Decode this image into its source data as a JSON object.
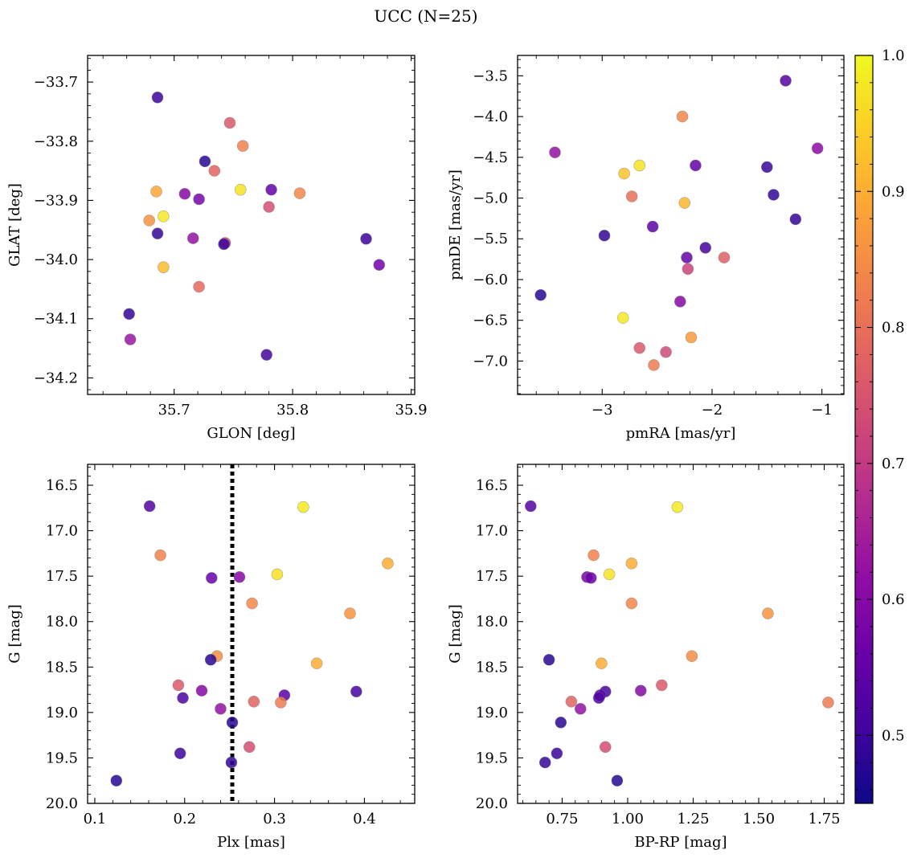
{
  "figure": {
    "title": "UCC (N=25)"
  },
  "colorbar": {
    "min": 0.45,
    "max": 1.0,
    "ticks": [
      0.5,
      0.6,
      0.7,
      0.8,
      0.9,
      1.0
    ],
    "tick_labels": [
      "0.5",
      "0.6",
      "0.7",
      "0.8",
      "0.9",
      "1.0"
    ],
    "colormap": "plasma"
  },
  "chart_data": [
    {
      "type": "scatter",
      "id": "glon-glat",
      "title": "",
      "xlabel": "GLON [deg]",
      "ylabel": "GLAT [deg]",
      "xlim": [
        35.627,
        35.903
      ],
      "ylim": [
        -34.228,
        -33.655
      ],
      "invert_y": false,
      "xticks": [
        35.7,
        35.8,
        35.9
      ],
      "xtick_labels": [
        "35.7",
        "35.8",
        "35.9"
      ],
      "yticks": [
        -33.7,
        -33.8,
        -33.9,
        -34.0,
        -34.1,
        -34.2
      ],
      "ytick_labels": [
        "−33.7",
        "−33.8",
        "−33.9",
        "−34.0",
        "−34.1",
        "−34.2"
      ],
      "points": [
        {
          "x": 35.686,
          "y": -33.726,
          "c": 0.5
        },
        {
          "x": 35.747,
          "y": -33.769,
          "c": 0.76
        },
        {
          "x": 35.758,
          "y": -33.808,
          "c": 0.83
        },
        {
          "x": 35.726,
          "y": -33.834,
          "c": 0.48
        },
        {
          "x": 35.734,
          "y": -33.85,
          "c": 0.78
        },
        {
          "x": 35.685,
          "y": -33.885,
          "c": 0.89
        },
        {
          "x": 35.756,
          "y": -33.882,
          "c": 0.97
        },
        {
          "x": 35.782,
          "y": -33.882,
          "c": 0.55
        },
        {
          "x": 35.806,
          "y": -33.888,
          "c": 0.84
        },
        {
          "x": 35.709,
          "y": -33.889,
          "c": 0.6
        },
        {
          "x": 35.721,
          "y": -33.898,
          "c": 0.58
        },
        {
          "x": 35.78,
          "y": -33.911,
          "c": 0.74
        },
        {
          "x": 35.691,
          "y": -33.927,
          "c": 0.98
        },
        {
          "x": 35.679,
          "y": -33.934,
          "c": 0.86
        },
        {
          "x": 35.686,
          "y": -33.956,
          "c": 0.49
        },
        {
          "x": 35.716,
          "y": -33.964,
          "c": 0.62
        },
        {
          "x": 35.743,
          "y": -33.972,
          "c": 0.72
        },
        {
          "x": 35.742,
          "y": -33.974,
          "c": 0.5
        },
        {
          "x": 35.862,
          "y": -33.965,
          "c": 0.5
        },
        {
          "x": 35.873,
          "y": -34.009,
          "c": 0.57
        },
        {
          "x": 35.691,
          "y": -34.013,
          "c": 0.92
        },
        {
          "x": 35.721,
          "y": -34.046,
          "c": 0.79
        },
        {
          "x": 35.662,
          "y": -34.092,
          "c": 0.49
        },
        {
          "x": 35.663,
          "y": -34.135,
          "c": 0.63
        },
        {
          "x": 35.778,
          "y": -34.161,
          "c": 0.51
        }
      ]
    },
    {
      "type": "scatter",
      "id": "pmra-pmde",
      "title": "",
      "xlabel": "pmRA [mas/yr]",
      "ylabel": "pmDE [mas/yr]",
      "xlim": [
        -3.77,
        -0.8
      ],
      "ylim": [
        -7.41,
        -3.25
      ],
      "invert_y": false,
      "xticks": [
        -3,
        -2,
        -1
      ],
      "xtick_labels": [
        "−3",
        "−2",
        "−1"
      ],
      "yticks": [
        -3.5,
        -4.0,
        -4.5,
        -5.0,
        -5.5,
        -6.0,
        -6.5,
        -7.0
      ],
      "ytick_labels": [
        "−3.5",
        "−4.0",
        "−4.5",
        "−5.0",
        "−5.5",
        "−6.0",
        "−6.5",
        "−7.0"
      ],
      "points": [
        {
          "x": -1.33,
          "y": -3.56,
          "c": 0.53
        },
        {
          "x": -2.27,
          "y": -4.0,
          "c": 0.84
        },
        {
          "x": -3.43,
          "y": -4.44,
          "c": 0.62
        },
        {
          "x": -1.04,
          "y": -4.39,
          "c": 0.61
        },
        {
          "x": -2.66,
          "y": -4.6,
          "c": 0.97
        },
        {
          "x": -2.8,
          "y": -4.7,
          "c": 0.93
        },
        {
          "x": -2.15,
          "y": -4.6,
          "c": 0.55
        },
        {
          "x": -1.5,
          "y": -4.62,
          "c": 0.5
        },
        {
          "x": -1.44,
          "y": -4.96,
          "c": 0.49
        },
        {
          "x": -2.73,
          "y": -4.98,
          "c": 0.8
        },
        {
          "x": -2.25,
          "y": -5.06,
          "c": 0.91
        },
        {
          "x": -1.24,
          "y": -5.26,
          "c": 0.49
        },
        {
          "x": -2.54,
          "y": -5.35,
          "c": 0.54
        },
        {
          "x": -2.98,
          "y": -5.46,
          "c": 0.49
        },
        {
          "x": -2.06,
          "y": -5.61,
          "c": 0.51
        },
        {
          "x": -2.23,
          "y": -5.73,
          "c": 0.55
        },
        {
          "x": -1.89,
          "y": -5.73,
          "c": 0.77
        },
        {
          "x": -2.22,
          "y": -5.87,
          "c": 0.72
        },
        {
          "x": -3.56,
          "y": -6.19,
          "c": 0.48
        },
        {
          "x": -2.29,
          "y": -6.27,
          "c": 0.6
        },
        {
          "x": -2.81,
          "y": -6.47,
          "c": 0.98
        },
        {
          "x": -2.19,
          "y": -6.71,
          "c": 0.87
        },
        {
          "x": -2.66,
          "y": -6.84,
          "c": 0.76
        },
        {
          "x": -2.42,
          "y": -6.89,
          "c": 0.73
        },
        {
          "x": -2.53,
          "y": -7.05,
          "c": 0.82
        }
      ]
    },
    {
      "type": "scatter",
      "id": "plx-g",
      "title": "",
      "xlabel": "Plx [mas]",
      "ylabel": "G [mag]",
      "xlim": [
        0.092,
        0.456
      ],
      "ylim": [
        20.0,
        16.27
      ],
      "invert_y": true,
      "xticks": [
        0.1,
        0.2,
        0.3,
        0.4
      ],
      "xtick_labels": [
        "0.1",
        "0.2",
        "0.3",
        "0.4"
      ],
      "yticks": [
        16.5,
        17.0,
        17.5,
        18.0,
        18.5,
        19.0,
        19.5,
        20.0
      ],
      "ytick_labels": [
        "16.5",
        "17.0",
        "17.5",
        "18.0",
        "18.5",
        "19.0",
        "19.5",
        "20.0"
      ],
      "vline": {
        "x": 0.253,
        "style": "dotted"
      },
      "points": [
        {
          "x": 0.161,
          "y": 16.73,
          "c": 0.53
        },
        {
          "x": 0.332,
          "y": 16.74,
          "c": 0.98
        },
        {
          "x": 0.173,
          "y": 17.27,
          "c": 0.83
        },
        {
          "x": 0.426,
          "y": 17.36,
          "c": 0.9
        },
        {
          "x": 0.303,
          "y": 17.48,
          "c": 0.97
        },
        {
          "x": 0.23,
          "y": 17.52,
          "c": 0.56
        },
        {
          "x": 0.261,
          "y": 17.51,
          "c": 0.6
        },
        {
          "x": 0.275,
          "y": 17.8,
          "c": 0.84
        },
        {
          "x": 0.384,
          "y": 17.91,
          "c": 0.86
        },
        {
          "x": 0.236,
          "y": 18.38,
          "c": 0.85
        },
        {
          "x": 0.229,
          "y": 18.42,
          "c": 0.48
        },
        {
          "x": 0.347,
          "y": 18.46,
          "c": 0.9
        },
        {
          "x": 0.193,
          "y": 18.7,
          "c": 0.76
        },
        {
          "x": 0.219,
          "y": 18.76,
          "c": 0.6
        },
        {
          "x": 0.391,
          "y": 18.77,
          "c": 0.51
        },
        {
          "x": 0.311,
          "y": 18.81,
          "c": 0.54
        },
        {
          "x": 0.198,
          "y": 18.84,
          "c": 0.52
        },
        {
          "x": 0.277,
          "y": 18.88,
          "c": 0.78
        },
        {
          "x": 0.307,
          "y": 18.89,
          "c": 0.82
        },
        {
          "x": 0.24,
          "y": 18.96,
          "c": 0.62
        },
        {
          "x": 0.253,
          "y": 19.11,
          "c": 0.48
        },
        {
          "x": 0.272,
          "y": 19.38,
          "c": 0.74
        },
        {
          "x": 0.195,
          "y": 19.45,
          "c": 0.5
        },
        {
          "x": 0.252,
          "y": 19.55,
          "c": 0.49
        },
        {
          "x": 0.124,
          "y": 19.75,
          "c": 0.48
        }
      ]
    },
    {
      "type": "scatter",
      "id": "bprp-g",
      "title": "",
      "xlabel": "BP-RP [mag]",
      "ylabel": "G [mag]",
      "xlim": [
        0.58,
        1.825
      ],
      "ylim": [
        20.0,
        16.27
      ],
      "invert_y": true,
      "xticks": [
        0.75,
        1.0,
        1.25,
        1.5,
        1.75
      ],
      "xtick_labels": [
        "0.75",
        "1.00",
        "1.25",
        "1.50",
        "1.75"
      ],
      "yticks": [
        16.5,
        17.0,
        17.5,
        18.0,
        18.5,
        19.0,
        19.5,
        20.0
      ],
      "ytick_labels": [
        "16.5",
        "17.0",
        "17.5",
        "18.0",
        "18.5",
        "19.0",
        "19.5",
        "20.0"
      ],
      "points": [
        {
          "x": 0.63,
          "y": 16.73,
          "c": 0.53
        },
        {
          "x": 1.19,
          "y": 16.74,
          "c": 0.98
        },
        {
          "x": 0.87,
          "y": 17.27,
          "c": 0.83
        },
        {
          "x": 1.015,
          "y": 17.36,
          "c": 0.9
        },
        {
          "x": 0.93,
          "y": 17.48,
          "c": 0.97
        },
        {
          "x": 0.845,
          "y": 17.51,
          "c": 0.58
        },
        {
          "x": 0.86,
          "y": 17.52,
          "c": 0.56
        },
        {
          "x": 1.015,
          "y": 17.8,
          "c": 0.84
        },
        {
          "x": 1.535,
          "y": 17.91,
          "c": 0.86
        },
        {
          "x": 1.245,
          "y": 18.38,
          "c": 0.85
        },
        {
          "x": 0.7,
          "y": 18.42,
          "c": 0.48
        },
        {
          "x": 0.9,
          "y": 18.46,
          "c": 0.9
        },
        {
          "x": 1.13,
          "y": 18.7,
          "c": 0.76
        },
        {
          "x": 1.05,
          "y": 18.76,
          "c": 0.6
        },
        {
          "x": 0.915,
          "y": 18.77,
          "c": 0.51
        },
        {
          "x": 0.895,
          "y": 18.81,
          "c": 0.54
        },
        {
          "x": 0.89,
          "y": 18.84,
          "c": 0.52
        },
        {
          "x": 0.785,
          "y": 18.88,
          "c": 0.78
        },
        {
          "x": 1.765,
          "y": 18.89,
          "c": 0.82
        },
        {
          "x": 0.82,
          "y": 18.96,
          "c": 0.62
        },
        {
          "x": 0.745,
          "y": 19.11,
          "c": 0.48
        },
        {
          "x": 0.915,
          "y": 19.38,
          "c": 0.74
        },
        {
          "x": 0.73,
          "y": 19.45,
          "c": 0.5
        },
        {
          "x": 0.685,
          "y": 19.55,
          "c": 0.49
        },
        {
          "x": 0.96,
          "y": 19.75,
          "c": 0.48
        }
      ]
    }
  ]
}
